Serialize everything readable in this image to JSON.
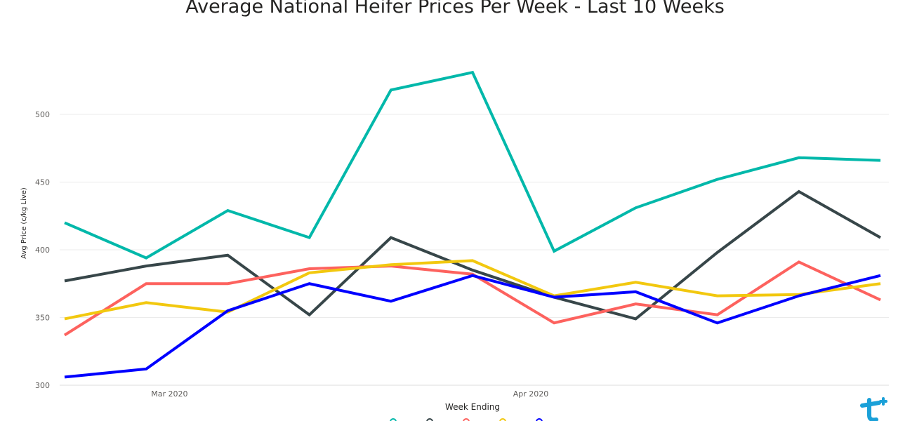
{
  "chart_data": {
    "type": "line",
    "title": "Average National Heifer Prices Per Week - Last 10 Weeks",
    "xlabel": "Week Ending",
    "ylabel": "Avg Price (c/kg Live)",
    "ylim": [
      300,
      540
    ],
    "y_ticks": [
      300,
      350,
      400,
      450,
      500
    ],
    "x_tick_labels": [
      {
        "label": "Mar 2020",
        "x": "2020-03-01"
      },
      {
        "label": "Apr 2020",
        "x": "2020-04-01"
      }
    ],
    "x": [
      "2020-02-21",
      "2020-02-28",
      "2020-03-06",
      "2020-03-13",
      "2020-03-20",
      "2020-03-27",
      "2020-04-03",
      "2020-04-10",
      "2020-04-17",
      "2020-04-24",
      "2020-05-01"
    ],
    "grid": true,
    "series": [
      {
        "color": "#01B8AA",
        "values": [
          420,
          394,
          429,
          409,
          518,
          531,
          399,
          431,
          452,
          468,
          466
        ]
      },
      {
        "color": "#374649",
        "values": [
          377,
          388,
          396,
          352,
          409,
          385,
          365,
          349,
          398,
          443,
          409
        ]
      },
      {
        "color": "#FD625E",
        "values": [
          337,
          375,
          375,
          386,
          388,
          382,
          346,
          360,
          352,
          391,
          363
        ]
      },
      {
        "color": "#F2C80F",
        "values": [
          349,
          361,
          354,
          383,
          389,
          392,
          366,
          376,
          366,
          367,
          375
        ]
      },
      {
        "color": "#0000FF",
        "values": [
          306,
          312,
          355,
          375,
          362,
          381,
          365,
          369,
          346,
          366,
          381
        ]
      }
    ]
  },
  "logo": {
    "name": "brand-logo-icon"
  }
}
